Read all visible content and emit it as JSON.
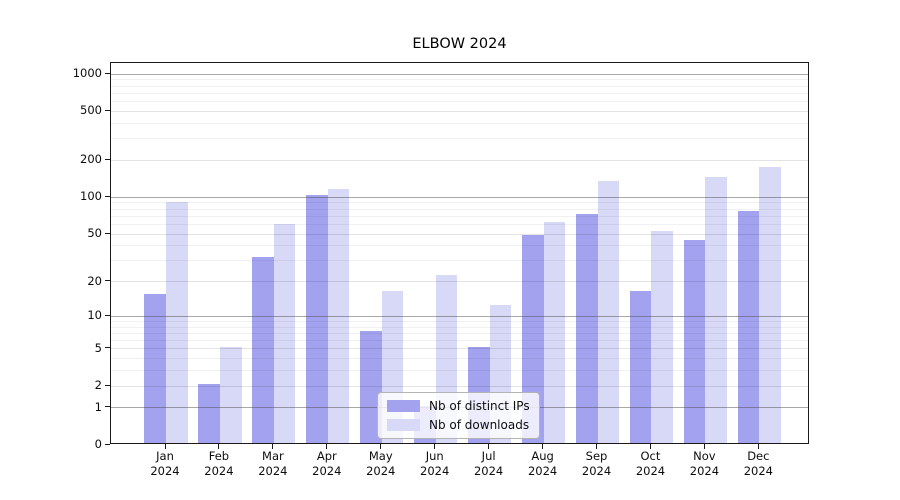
{
  "chart_data": {
    "type": "bar",
    "title": "ELBOW 2024",
    "categories": [
      "Jan 2024",
      "Feb 2024",
      "Mar 2024",
      "Apr 2024",
      "May 2024",
      "Jun 2024",
      "Jul 2024",
      "Aug 2024",
      "Sep 2024",
      "Oct 2024",
      "Nov 2024",
      "Dec 2024"
    ],
    "series": [
      {
        "name": "Nb of distinct IPs",
        "color": "#a2a2ef",
        "values": [
          15,
          2,
          31,
          100,
          7,
          1,
          5,
          47,
          70,
          16,
          43,
          74
        ]
      },
      {
        "name": "Nb of downloads",
        "color": "#d8d8f7",
        "values": [
          88,
          5,
          58,
          113,
          16,
          22,
          12,
          60,
          130,
          51,
          142,
          171
        ]
      }
    ],
    "yscale": "log1p",
    "yticks": [
      0,
      1,
      2,
      5,
      10,
      20,
      50,
      100,
      200,
      500,
      1000
    ],
    "ylim": [
      0,
      1240
    ],
    "xlabel": "",
    "ylabel": "",
    "grid": true,
    "legend_position": "lower center",
    "colors": {
      "background": "#ffffff",
      "spine": "#1a1a1a",
      "grid_major_decade": "#a8a8a8",
      "grid_labeled": "#e3e3e3",
      "grid_minor": "#f1f1f1",
      "text": "#0d0d0d"
    }
  }
}
